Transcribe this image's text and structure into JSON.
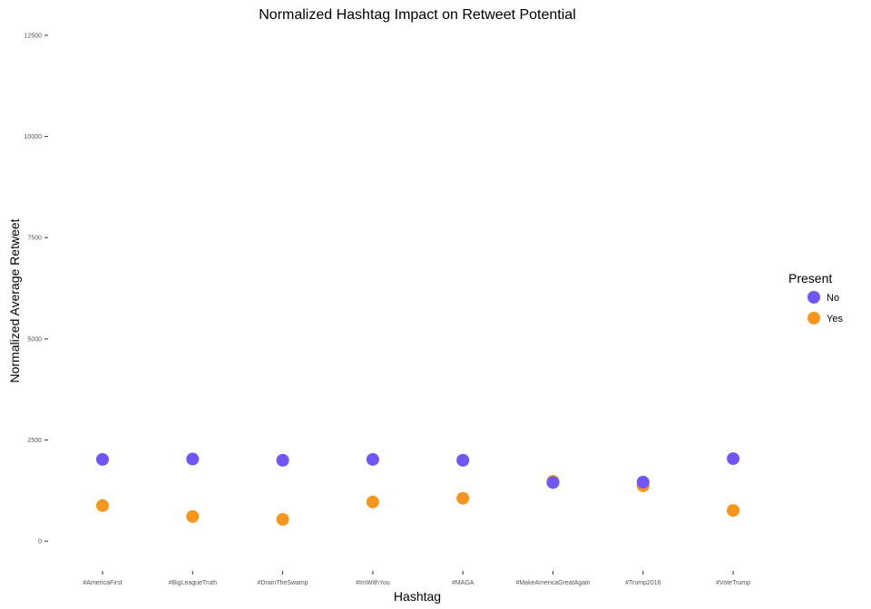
{
  "chart_data": {
    "type": "scatter",
    "title": "Normalized Hashtag Impact on Retweet Potential",
    "xlabel": "Hashtag",
    "ylabel": "Normalized Average Retweet",
    "categories": [
      "#AmericaFirst",
      "#BigLeagueTruth",
      "#DrainTheSwamp",
      "#ImWithYou",
      "#MAGA",
      "#MakeAmericaGreatAgain",
      "#Trump2016",
      "#VoteTrump"
    ],
    "ylim": [
      -600,
      12700
    ],
    "yticks": [
      0,
      2500,
      5000,
      7500,
      10000,
      12500
    ],
    "grid": false,
    "legend": {
      "title": "Present",
      "placement": "right"
    },
    "series": [
      {
        "name": "No",
        "color": "#7155F7",
        "values": [
          2020,
          2030,
          2000,
          2020,
          2000,
          1450,
          1460,
          2040
        ]
      },
      {
        "name": "Yes",
        "color": "#F7961D",
        "values": [
          880,
          610,
          540,
          970,
          1060,
          1480,
          1370,
          760
        ]
      }
    ]
  }
}
